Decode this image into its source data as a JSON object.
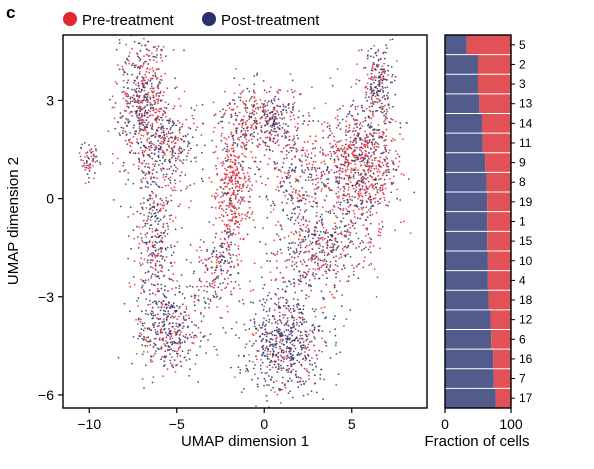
{
  "panel_label": "c",
  "colors": {
    "pre": "#e0262e",
    "post": "#2b2f6b",
    "bar_pre": "#e05256",
    "bar_post": "#515b8c"
  },
  "chart_data": [
    {
      "type": "scatter",
      "title": "",
      "xlabel": "UMAP dimension 1",
      "ylabel": "UMAP dimension 2",
      "xlim": [
        -11.5,
        9.3
      ],
      "ylim": [
        -6.4,
        5.0
      ],
      "xticks": [
        -10,
        -5,
        0,
        5
      ],
      "xtick_labels": [
        "−10",
        "−5",
        "0",
        "5"
      ],
      "yticks": [
        -6,
        -3,
        0,
        3
      ],
      "ytick_labels": [
        "−6",
        "−3",
        "0",
        "3"
      ],
      "legend": {
        "placement": "top-left",
        "entries": [
          "Pre-treatment",
          "Post-treatment"
        ]
      },
      "series": [
        {
          "name": "Pre-treatment",
          "color": "#e0262e"
        },
        {
          "name": "Post-treatment",
          "color": "#2b2f6b"
        }
      ],
      "regions": [
        {
          "cx": -7.0,
          "cy": 3.0,
          "sx": 1.0,
          "sy": 1.4,
          "n": 520,
          "pre": 0.5
        },
        {
          "cx": -5.6,
          "cy": 1.6,
          "sx": 1.3,
          "sy": 0.9,
          "n": 320,
          "pre": 0.45
        },
        {
          "cx": -6.2,
          "cy": -1.2,
          "sx": 0.8,
          "sy": 1.4,
          "n": 300,
          "pre": 0.35
        },
        {
          "cx": -5.4,
          "cy": -4.0,
          "sx": 1.3,
          "sy": 1.0,
          "n": 420,
          "pre": 0.35
        },
        {
          "cx": -10.0,
          "cy": 1.2,
          "sx": 0.35,
          "sy": 0.35,
          "n": 60,
          "pre": 0.55
        },
        {
          "cx": -1.8,
          "cy": 0.2,
          "sx": 0.7,
          "sy": 1.4,
          "n": 380,
          "pre": 0.8
        },
        {
          "cx": 0.0,
          "cy": 2.4,
          "sx": 1.6,
          "sy": 0.7,
          "n": 420,
          "pre": 0.55
        },
        {
          "cx": 2.0,
          "cy": 0.6,
          "sx": 1.4,
          "sy": 1.0,
          "n": 280,
          "pre": 0.45
        },
        {
          "cx": 5.5,
          "cy": 1.0,
          "sx": 1.4,
          "sy": 1.3,
          "n": 820,
          "pre": 0.6
        },
        {
          "cx": 6.5,
          "cy": 3.6,
          "sx": 0.6,
          "sy": 0.8,
          "n": 200,
          "pre": 0.4
        },
        {
          "cx": 3.2,
          "cy": -1.6,
          "sx": 1.8,
          "sy": 0.9,
          "n": 420,
          "pre": 0.4
        },
        {
          "cx": 1.2,
          "cy": -4.4,
          "sx": 1.5,
          "sy": 1.1,
          "n": 640,
          "pre": 0.25
        },
        {
          "cx": -2.8,
          "cy": -2.2,
          "sx": 0.9,
          "sy": 0.8,
          "n": 160,
          "pre": 0.45
        }
      ]
    },
    {
      "type": "bar",
      "orientation": "horizontal",
      "stacked": true,
      "title": "",
      "xlabel": "Fraction of cells",
      "xlim": [
        0,
        100
      ],
      "xticks": [
        0,
        100
      ],
      "categories": [
        "5",
        "2",
        "3",
        "13",
        "14",
        "11",
        "9",
        "8",
        "19",
        "1",
        "15",
        "10",
        "4",
        "18",
        "12",
        "6",
        "16",
        "7",
        "17"
      ],
      "series": [
        {
          "color": "#515b8c",
          "values": [
            33,
            50,
            50,
            52,
            56,
            57,
            61,
            63,
            64,
            64,
            64,
            65,
            65,
            66,
            69,
            70,
            73,
            74,
            77
          ]
        },
        {
          "color": "#e05256",
          "values": [
            67,
            50,
            50,
            48,
            44,
            43,
            39,
            37,
            36,
            36,
            36,
            35,
            35,
            34,
            31,
            30,
            27,
            26,
            23
          ]
        }
      ]
    }
  ]
}
